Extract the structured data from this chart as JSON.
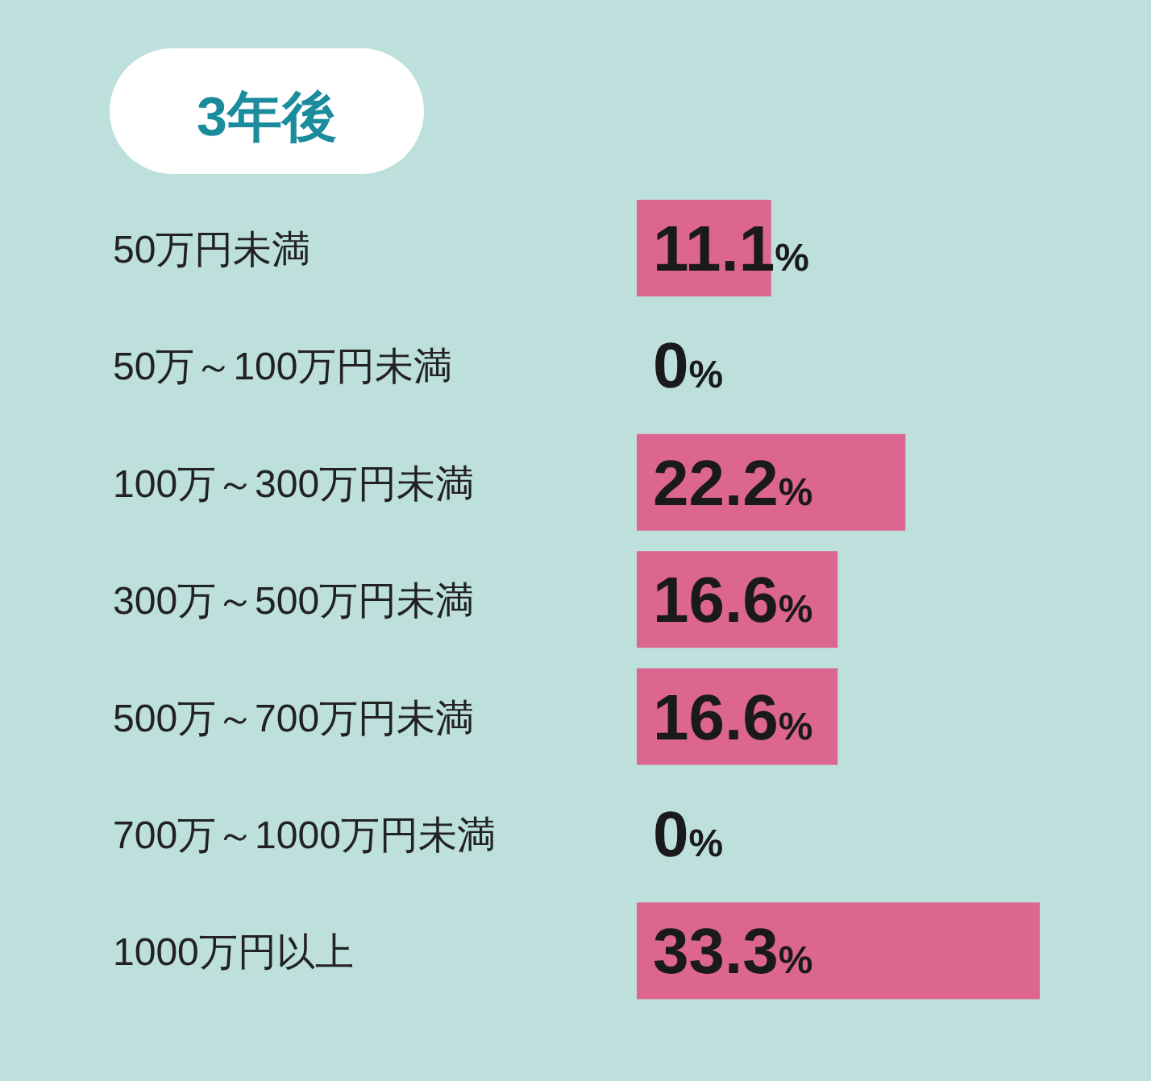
{
  "chart_data": {
    "type": "bar",
    "orientation": "horizontal",
    "title": "3年後",
    "categories": [
      "50万円未満",
      "50万～100万円未満",
      "100万～300万円未満",
      "300万～500万円未満",
      "500万～700万円未満",
      "700万～1000万円未満",
      "1000万円以上"
    ],
    "values": [
      11.1,
      0,
      22.2,
      16.6,
      16.6,
      0,
      33.3
    ],
    "color": "#dd6690",
    "value_labels": [
      "11.1%",
      "0%",
      "22.2%",
      "16.6%",
      "16.6%",
      "0%",
      "33.3%"
    ]
  }
}
